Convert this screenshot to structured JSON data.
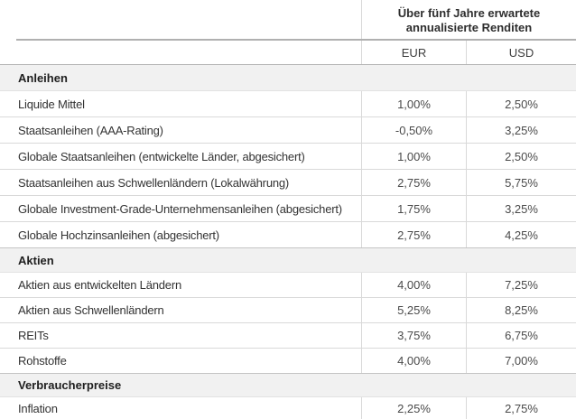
{
  "header": {
    "title_line1": "Über fünf Jahre erwartete",
    "title_line2": "annualisierte Renditen",
    "columns": {
      "eur": "EUR",
      "usd": "USD"
    }
  },
  "table": {
    "sections": [
      {
        "label": "Anleihen",
        "rows": [
          {
            "label": "Liquide Mittel",
            "eur": "1,00%",
            "usd": "2,50%"
          },
          {
            "label": "Staatsanleihen (AAA-Rating)",
            "eur": "-0,50%",
            "usd": "3,25%"
          },
          {
            "label": "Globale Staatsanleihen (entwickelte Länder, abgesichert)",
            "eur": "1,00%",
            "usd": "2,50%"
          },
          {
            "label": "Staatsanleihen aus Schwellenländern (Lokalwährung)",
            "eur": "2,75%",
            "usd": "5,75%"
          },
          {
            "label": "Globale Investment-Grade-Unternehmensanleihen (abgesichert)",
            "eur": "1,75%",
            "usd": "3,25%"
          },
          {
            "label": "Globale Hochzinsanleihen (abgesichert)",
            "eur": "2,75%",
            "usd": "4,25%"
          }
        ]
      },
      {
        "label": "Aktien",
        "rows": [
          {
            "label": "Aktien aus entwickelten Ländern",
            "eur": "4,00%",
            "usd": "7,25%"
          },
          {
            "label": "Aktien aus Schwellenländern",
            "eur": "5,25%",
            "usd": "8,25%"
          },
          {
            "label": "REITs",
            "eur": "3,75%",
            "usd": "6,75%"
          },
          {
            "label": "Rohstoffe",
            "eur": "4,00%",
            "usd": "7,00%"
          }
        ]
      },
      {
        "label": "Verbraucherpreise",
        "rows": [
          {
            "label": "Inflation",
            "eur": "2,25%",
            "usd": "2,75%"
          }
        ]
      }
    ]
  },
  "colors": {
    "section_band_background": "#f1f1f1",
    "row_separator": "#d9d9d9",
    "header_rule": "#b0b0b0",
    "label_text": "#333333",
    "value_text": "#4a4a4a"
  }
}
